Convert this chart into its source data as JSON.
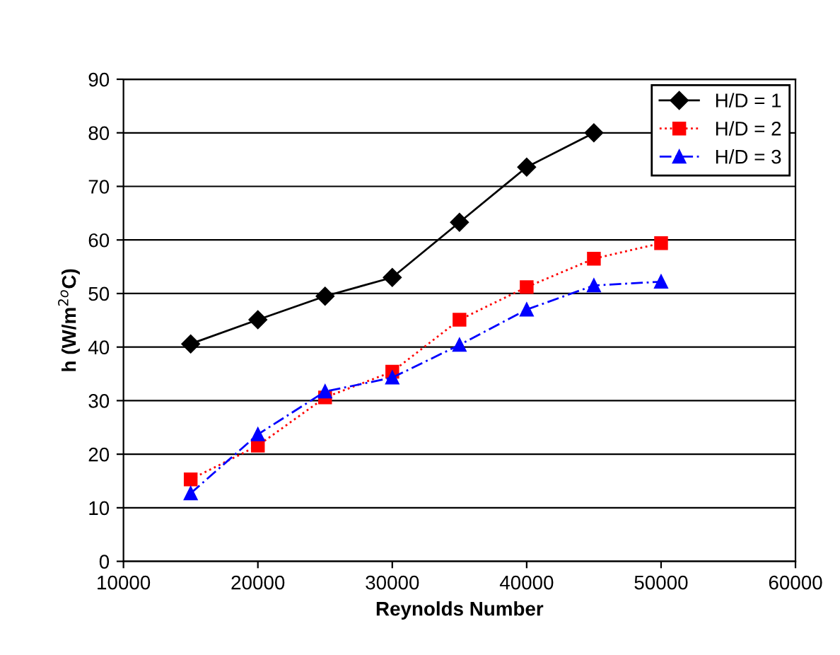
{
  "chart_data": {
    "type": "line",
    "xlabel": "Reynolds Number",
    "ylabel": "h (W/m$^{2o}$C)",
    "x": [
      15000,
      20000,
      25000,
      30000,
      35000,
      40000,
      45000,
      50000
    ],
    "series": [
      {
        "name": "H/D = 1",
        "color": "#000000",
        "marker": "diamond",
        "line_style": "solid",
        "values": [
          40.6,
          45.1,
          49.5,
          53,
          63.3,
          73.6,
          80,
          null
        ]
      },
      {
        "name": "H/D = 2",
        "color": "#ff0000",
        "marker": "square",
        "line_style": "dotted",
        "values": [
          15.3,
          21.6,
          30.6,
          35.4,
          45.1,
          51.2,
          56.5,
          59.4
        ]
      },
      {
        "name": "H/D = 3",
        "color": "#0000ff",
        "marker": "triangle",
        "line_style": "dashed",
        "values": [
          12.7,
          23.7,
          31.7,
          34.3,
          40.4,
          47,
          51.5,
          52.2
        ]
      }
    ],
    "xlim": [
      10000,
      60000
    ],
    "xticks": [
      10000,
      20000,
      30000,
      40000,
      50000,
      60000
    ],
    "ylim": [
      0,
      90
    ],
    "yticks": [
      0,
      10,
      20,
      30,
      40,
      50,
      60,
      70,
      80,
      90
    ],
    "grid": "y",
    "legend": "top right"
  }
}
